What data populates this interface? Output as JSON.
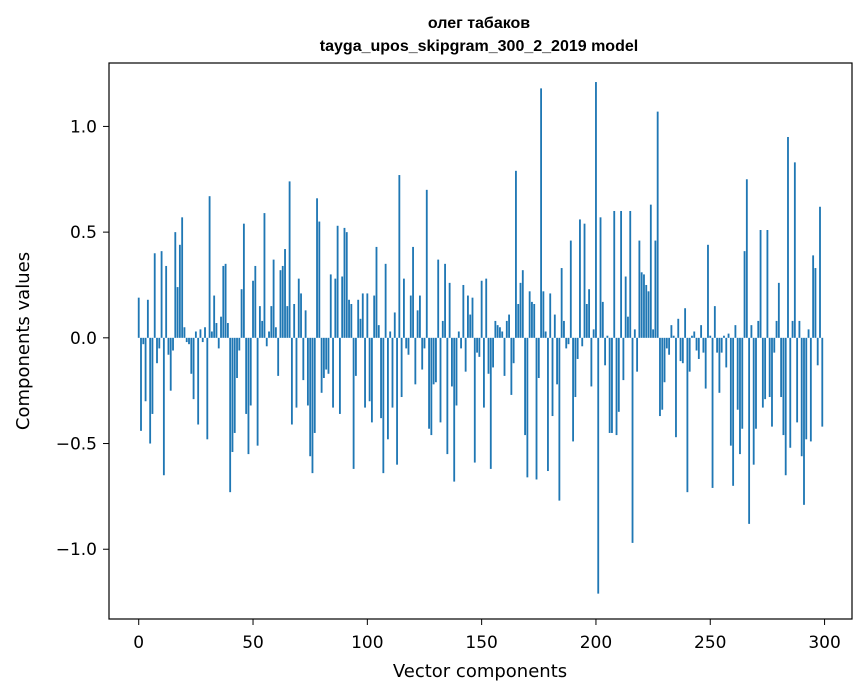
{
  "chart_data": {
    "type": "bar",
    "title": "олег табаков",
    "subtitle": "tayga_upos_skipgram_300_2_2019 model",
    "xlabel": "Vector components",
    "ylabel": "Components values",
    "xlim": [
      -13,
      312
    ],
    "ylim": [
      -1.33,
      1.3
    ],
    "xticks": [
      0,
      50,
      100,
      150,
      200,
      250,
      300
    ],
    "xtick_labels": [
      "0",
      "50",
      "100",
      "150",
      "200",
      "250",
      "300"
    ],
    "yticks": [
      -1.0,
      -0.5,
      0.0,
      0.5,
      1.0
    ],
    "ytick_labels": [
      "−1.0",
      "−0.5",
      "0.0",
      "0.5",
      "1.0"
    ],
    "bar_color": "#1f77b4",
    "grid": false,
    "x": "indices 0..299 (one bar per vector component)",
    "values": [
      0.19,
      -0.44,
      -0.03,
      -0.3,
      0.18,
      -0.5,
      -0.36,
      0.4,
      -0.12,
      -0.05,
      0.41,
      -0.65,
      0.34,
      -0.08,
      -0.25,
      -0.06,
      0.5,
      0.24,
      0.44,
      0.57,
      0.05,
      -0.02,
      -0.03,
      -0.17,
      -0.29,
      0.03,
      -0.41,
      0.04,
      -0.02,
      0.05,
      -0.48,
      0.67,
      0.03,
      0.2,
      0.07,
      -0.05,
      0.1,
      0.34,
      0.35,
      0.07,
      -0.73,
      -0.54,
      -0.45,
      -0.19,
      -0.06,
      0.23,
      0.54,
      -0.36,
      -0.55,
      -0.32,
      0.27,
      0.34,
      -0.51,
      0.15,
      0.08,
      0.59,
      -0.04,
      0.03,
      0.15,
      0.37,
      0.05,
      -0.18,
      0.32,
      0.34,
      0.42,
      0.15,
      0.74,
      -0.41,
      0.16,
      -0.33,
      0.28,
      0.21,
      -0.2,
      0.13,
      -0.32,
      -0.56,
      -0.64,
      -0.45,
      0.66,
      0.55,
      -0.26,
      -0.19,
      -0.15,
      -0.17,
      0.3,
      -0.33,
      0.28,
      0.53,
      -0.36,
      0.29,
      0.52,
      0.5,
      0.18,
      0.16,
      -0.62,
      -0.18,
      0.18,
      0.09,
      0.21,
      -0.33,
      0.21,
      -0.3,
      -0.4,
      0.2,
      0.43,
      0.06,
      -0.38,
      -0.64,
      0.35,
      -0.48,
      0.03,
      -0.33,
      0.12,
      -0.6,
      0.77,
      -0.28,
      0.28,
      -0.05,
      -0.08,
      0.2,
      0.43,
      -0.22,
      0.13,
      0.2,
      -0.15,
      -0.05,
      0.7,
      -0.43,
      -0.46,
      -0.22,
      -0.21,
      0.37,
      -0.4,
      0.08,
      0.35,
      -0.55,
      0.26,
      -0.23,
      -0.68,
      -0.32,
      0.03,
      -0.05,
      0.25,
      -0.16,
      0.2,
      0.11,
      0.19,
      -0.59,
      -0.07,
      -0.09,
      0.27,
      -0.33,
      0.28,
      -0.17,
      -0.62,
      -0.14,
      0.08,
      0.06,
      0.05,
      0.03,
      -0.18,
      0.08,
      0.11,
      -0.27,
      -0.12,
      0.79,
      0.16,
      0.26,
      0.32,
      -0.46,
      -0.66,
      0.22,
      0.17,
      0.16,
      -0.67,
      -0.19,
      1.18,
      0.22,
      0.03,
      -0.63,
      0.21,
      -0.37,
      0.11,
      -0.22,
      -0.77,
      0.33,
      0.08,
      -0.05,
      -0.03,
      0.46,
      -0.49,
      -0.28,
      -0.1,
      0.56,
      -0.04,
      0.54,
      0.16,
      0.23,
      -0.23,
      0.04,
      1.21,
      -1.21,
      0.57,
      0.17,
      -0.13,
      0.01,
      -0.45,
      -0.45,
      0.6,
      -0.46,
      -0.35,
      0.6,
      -0.2,
      0.29,
      0.1,
      0.6,
      -0.97,
      0.04,
      -0.16,
      0.46,
      0.31,
      0.3,
      0.25,
      0.22,
      0.63,
      0.04,
      0.46,
      1.07,
      -0.37,
      -0.34,
      -0.21,
      -0.05,
      -0.08,
      0.06,
      0.01,
      -0.47,
      0.09,
      -0.11,
      -0.12,
      0.14,
      -0.73,
      -0.16,
      0.01,
      0.03,
      -0.06,
      -0.1,
      0.06,
      -0.07,
      -0.24,
      0.44,
      0.01,
      -0.71,
      0.15,
      -0.07,
      -0.26,
      -0.07,
      0.01,
      -0.14,
      0.02,
      -0.51,
      -0.7,
      0.06,
      -0.34,
      -0.55,
      -0.43,
      0.41,
      0.75,
      -0.88,
      0.06,
      -0.6,
      -0.43,
      0.08,
      0.51,
      -0.33,
      -0.29,
      0.51,
      -0.28,
      -0.42,
      -0.07,
      0.08,
      0.26,
      -0.28,
      -0.46,
      -0.65,
      0.95,
      -0.52,
      0.08,
      0.83,
      -0.4,
      0.08,
      -0.56,
      -0.79,
      -0.48,
      0.04,
      -0.49,
      0.39,
      0.33,
      -0.13,
      0.62,
      -0.42
    ]
  }
}
